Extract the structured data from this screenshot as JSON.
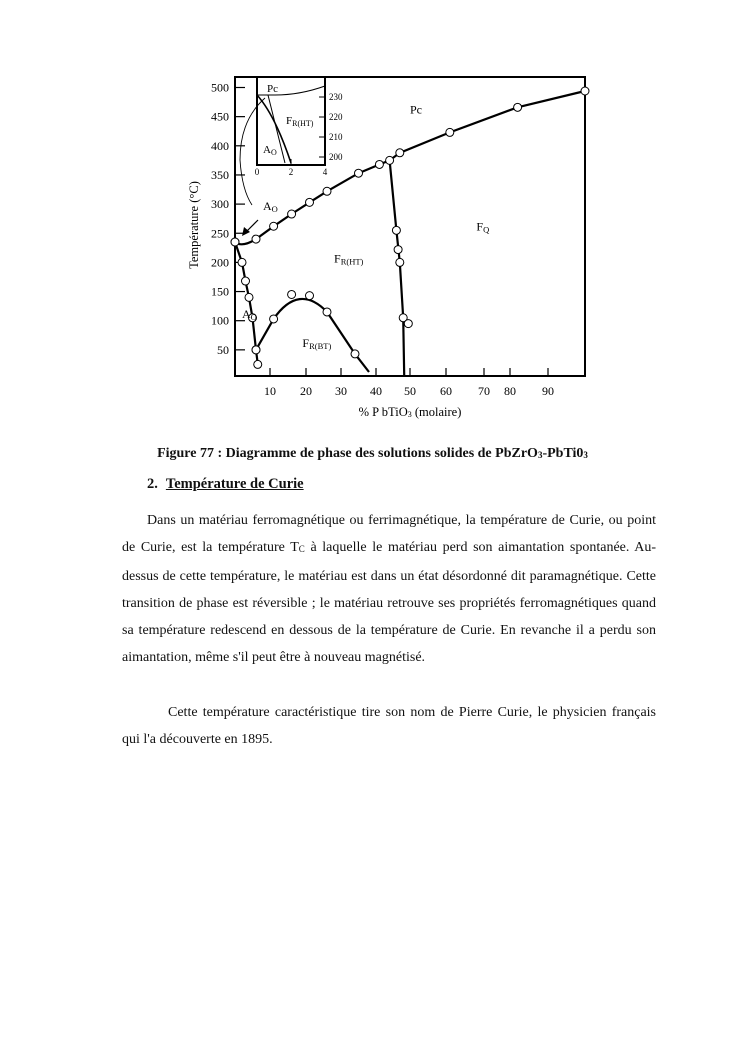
{
  "chart_data": {
    "type": "line",
    "title": "",
    "xlabel": "% P bTiO",
    "xlabel_sub": "3",
    "xlabel_suffix": " (molaire)",
    "ylabel": "Température (°C)",
    "xlim": [
      0,
      100
    ],
    "ylim": [
      0,
      520
    ],
    "x_ticks": [
      10,
      20,
      30,
      40,
      50,
      60,
      70,
      80,
      90
    ],
    "y_ticks": [
      50,
      100,
      150,
      200,
      250,
      300,
      350,
      400,
      450,
      500
    ],
    "grid": false,
    "series": [
      {
        "points": [
          [
            0,
            235
          ],
          [
            6,
            240
          ],
          [
            11,
            262
          ],
          [
            16,
            283
          ],
          [
            21,
            303
          ],
          [
            26,
            322
          ],
          [
            35,
            353
          ],
          [
            41,
            368
          ],
          [
            44,
            375
          ],
          [
            47,
            388
          ],
          [
            61,
            423
          ],
          [
            82,
            466
          ],
          [
            100,
            494
          ]
        ]
      },
      {
        "points": [
          [
            0,
            235
          ],
          [
            2,
            200
          ],
          [
            3,
            168
          ],
          [
            4,
            140
          ],
          [
            5,
            105
          ],
          [
            6,
            50
          ],
          [
            6.5,
            25
          ]
        ]
      },
      {
        "points": [
          [
            6,
            50
          ],
          [
            11,
            103
          ],
          [
            16,
            145
          ],
          [
            21,
            143
          ],
          [
            26,
            115
          ],
          [
            34,
            43
          ]
        ]
      },
      {
        "points": [
          [
            46,
            255
          ],
          [
            46.5,
            222
          ],
          [
            47,
            200
          ],
          [
            48,
            105
          ],
          [
            49.5,
            95
          ]
        ]
      }
    ],
    "region_labels": [
      {
        "text": "Pc",
        "x": 50,
        "y": 455
      },
      {
        "text": "F",
        "sub": "Q",
        "x": 68,
        "y": 255
      },
      {
        "text": "F",
        "sub": "R(HT)",
        "x": 28,
        "y": 200
      },
      {
        "text": "F",
        "sub": "R(BT)",
        "x": 19,
        "y": 55
      },
      {
        "text": "A",
        "sub": "O",
        "x": 2,
        "y": 105
      },
      {
        "text": "A",
        "sub": "O",
        "x": 8,
        "y": 290
      }
    ],
    "inset": {
      "xlim": [
        0,
        4
      ],
      "ylim": [
        197,
        237
      ],
      "x_ticks": [
        0,
        2,
        4
      ],
      "y_ticks": [
        200,
        210,
        220,
        230
      ],
      "labels": [
        {
          "text": "Pc"
        },
        {
          "text": "F",
          "sub": "R(HT)"
        },
        {
          "text": "A",
          "sub": "O"
        }
      ]
    }
  },
  "document": {
    "caption": "Figure 77 : Diagramme de phase des solutions solides de PbZrO",
    "caption_sub": "3",
    "caption_mid": "-PbTi0",
    "caption_sub2": "3",
    "section_number": "2.",
    "section_title": "Température de Curie",
    "p1_a": "Dans un matériau ferromagnétique ou ferrimagnétique, la température de Curie, ou point de Curie, est la température T",
    "p1_sub": "C",
    "p1_b": " à laquelle le matériau perd son aimantation spontanée. Au-dessus de cette température, le matériau est dans un état désordonné dit paramagnétique. Cette transition de phase est réversible ; le matériau retrouve ses propriétés ferromagnétiques quand sa température redescend en dessous de la température de Curie. En revanche il a perdu son aimantation, même s'il peut être à nouveau magnétisé.",
    "p2": "Cette température caractéristique tire son nom de Pierre Curie, le physicien français qui l'a découverte en 1895."
  }
}
